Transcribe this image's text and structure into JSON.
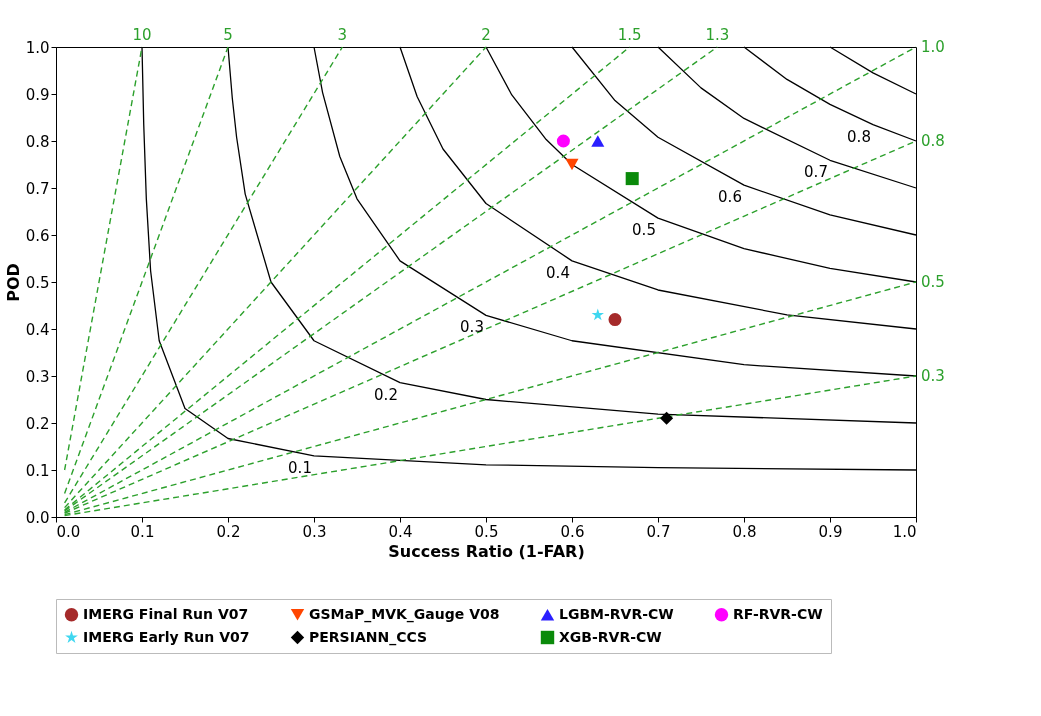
{
  "chart_data": {
    "type": "scatter",
    "xlabel": "Success Ratio (1-FAR)",
    "ylabel": "POD",
    "xlim": [
      0,
      1
    ],
    "ylim": [
      0,
      1
    ],
    "xticks": [
      {
        "value": 0,
        "label": "0.0"
      },
      0.1,
      0.2,
      0.3,
      0.4,
      0.5,
      0.6,
      0.7,
      0.8,
      0.9,
      {
        "value": 1,
        "label": "1.0"
      }
    ],
    "yticks": [
      {
        "value": 0,
        "label": "0.0"
      },
      0.1,
      0.2,
      0.3,
      0.4,
      0.5,
      0.6,
      0.7,
      0.8,
      0.9,
      {
        "value": 1,
        "label": "1.0"
      }
    ],
    "grid": false,
    "legend": "bottom",
    "series": [
      {
        "type": "line",
        "color": "#000000",
        "line_style": "solid",
        "marker": "none",
        "x": [
          0.1,
          0.102,
          0.105,
          0.11,
          0.12,
          0.15,
          0.2,
          0.3,
          0.5,
          0.7,
          1.0
        ],
        "values": [
          1.0,
          0.836,
          0.678,
          0.524,
          0.375,
          0.231,
          0.167,
          0.13,
          0.111,
          0.105,
          0.1
        ]
      },
      {
        "type": "line",
        "color": "#000000",
        "line_style": "solid",
        "marker": "none",
        "x": [
          0.2,
          0.205,
          0.21,
          0.22,
          0.25,
          0.3,
          0.4,
          0.5,
          0.7,
          1.0
        ],
        "values": [
          1.0,
          0.891,
          0.808,
          0.687,
          0.5,
          0.375,
          0.286,
          0.25,
          0.219,
          0.2
        ]
      },
      {
        "type": "line",
        "color": "#000000",
        "line_style": "solid",
        "marker": "none",
        "x": [
          0.3,
          0.31,
          0.33,
          0.35,
          0.4,
          0.5,
          0.6,
          0.8,
          1.0
        ],
        "values": [
          1.0,
          0.903,
          0.767,
          0.677,
          0.545,
          0.429,
          0.375,
          0.324,
          0.3
        ]
      },
      {
        "type": "line",
        "color": "#000000",
        "line_style": "solid",
        "marker": "none",
        "x": [
          0.4,
          0.42,
          0.45,
          0.5,
          0.6,
          0.7,
          0.85,
          1.0
        ],
        "values": [
          1.0,
          0.894,
          0.783,
          0.667,
          0.545,
          0.483,
          0.43,
          0.4
        ]
      },
      {
        "type": "line",
        "color": "#000000",
        "line_style": "solid",
        "marker": "none",
        "x": [
          0.5,
          0.53,
          0.57,
          0.6,
          0.7,
          0.8,
          0.9,
          1.0
        ],
        "values": [
          1.0,
          0.898,
          0.803,
          0.75,
          0.636,
          0.571,
          0.529,
          0.5
        ]
      },
      {
        "type": "line",
        "color": "#000000",
        "line_style": "solid",
        "marker": "none",
        "x": [
          0.6,
          0.65,
          0.7,
          0.8,
          0.9,
          1.0
        ],
        "values": [
          1.0,
          0.886,
          0.808,
          0.706,
          0.643,
          0.6
        ]
      },
      {
        "type": "line",
        "color": "#000000",
        "line_style": "solid",
        "marker": "none",
        "x": [
          0.7,
          0.75,
          0.8,
          0.9,
          1.0
        ],
        "values": [
          1.0,
          0.913,
          0.848,
          0.759,
          0.7
        ]
      },
      {
        "type": "line",
        "color": "#000000",
        "line_style": "solid",
        "marker": "none",
        "x": [
          0.8,
          0.85,
          0.9,
          0.95,
          1.0
        ],
        "values": [
          1.0,
          0.931,
          0.878,
          0.835,
          0.8
        ]
      },
      {
        "type": "line",
        "color": "#000000",
        "line_style": "solid",
        "marker": "none",
        "x": [
          0.9,
          0.95,
          1.0
        ],
        "values": [
          1.0,
          0.945,
          0.9
        ]
      },
      {
        "type": "line",
        "color": "#2ca02c",
        "line_style": "dashed",
        "marker": "none",
        "x": [
          0.01,
          0.1
        ],
        "values": [
          0.1,
          1.0
        ]
      },
      {
        "type": "line",
        "color": "#2ca02c",
        "line_style": "dashed",
        "marker": "none",
        "x": [
          0.01,
          0.2
        ],
        "values": [
          0.05,
          1.0
        ]
      },
      {
        "type": "line",
        "color": "#2ca02c",
        "line_style": "dashed",
        "marker": "none",
        "x": [
          0.01,
          0.333
        ],
        "values": [
          0.03,
          1.0
        ]
      },
      {
        "type": "line",
        "color": "#2ca02c",
        "line_style": "dashed",
        "marker": "none",
        "x": [
          0.01,
          0.5
        ],
        "values": [
          0.02,
          1.0
        ]
      },
      {
        "type": "line",
        "color": "#2ca02c",
        "line_style": "dashed",
        "marker": "none",
        "x": [
          0.01,
          0.667
        ],
        "values": [
          0.015,
          1.0
        ]
      },
      {
        "type": "line",
        "color": "#2ca02c",
        "line_style": "dashed",
        "marker": "none",
        "x": [
          0.01,
          0.769
        ],
        "values": [
          0.013,
          1.0
        ]
      },
      {
        "type": "line",
        "color": "#2ca02c",
        "line_style": "dashed",
        "marker": "none",
        "x": [
          0.01,
          1.0
        ],
        "values": [
          0.01,
          1.0
        ]
      },
      {
        "type": "line",
        "color": "#2ca02c",
        "line_style": "dashed",
        "marker": "none",
        "x": [
          0.01,
          1.0
        ],
        "values": [
          0.008,
          0.8
        ]
      },
      {
        "type": "line",
        "color": "#2ca02c",
        "line_style": "dashed",
        "marker": "none",
        "x": [
          0.01,
          1.0
        ],
        "values": [
          0.005,
          0.5
        ]
      },
      {
        "type": "line",
        "color": "#2ca02c",
        "line_style": "dashed",
        "marker": "none",
        "x": [
          0.01,
          1.0
        ],
        "values": [
          0.003,
          0.3
        ]
      },
      {
        "name": "IMERG Final Run V07",
        "color": "#a52a2a",
        "marker": "circle",
        "x": [
          0.65
        ],
        "values": [
          0.42
        ]
      },
      {
        "name": "GSMaP_MVK_Gauge V08",
        "color": "#ff4500",
        "marker": "triangle-down",
        "x": [
          0.6
        ],
        "values": [
          0.75
        ]
      },
      {
        "name": "LGBM-RVR-CW",
        "color": "#2a1fff",
        "marker": "triangle",
        "x": [
          0.63
        ],
        "values": [
          0.8
        ]
      },
      {
        "name": "RF-RVR-CW",
        "color": "#ff00ff",
        "marker": "circle",
        "x": [
          0.59
        ],
        "values": [
          0.8
        ]
      },
      {
        "name": "IMERG Early Run V07",
        "color": "#3fd7f0",
        "marker": "star",
        "x": [
          0.63
        ],
        "values": [
          0.43
        ]
      },
      {
        "name": "PERSIANN_CCS",
        "color": "#000000",
        "marker": "diamond",
        "x": [
          0.71
        ],
        "values": [
          0.21
        ]
      },
      {
        "name": "XGB-RVR-CW",
        "color": "#0a8a0a",
        "marker": "square",
        "x": [
          0.67
        ],
        "values": [
          0.72
        ]
      }
    ],
    "annotations": [
      {
        "text": "0.1",
        "x": 0.3,
        "y": 0.13
      },
      {
        "text": "0.2",
        "x": 0.4,
        "y": 0.286
      },
      {
        "text": "0.3",
        "x": 0.5,
        "y": 0.429
      },
      {
        "text": "0.4",
        "x": 0.6,
        "y": 0.545
      },
      {
        "text": "0.5",
        "x": 0.7,
        "y": 0.636
      },
      {
        "text": "0.6",
        "x": 0.8,
        "y": 0.706
      },
      {
        "text": "0.7",
        "x": 0.9,
        "y": 0.759
      },
      {
        "text": "0.8",
        "x": 0.95,
        "y": 0.835
      },
      {
        "text": "10",
        "x": 0.1,
        "y": 1.0
      },
      {
        "text": "5",
        "x": 0.2,
        "y": 1.0
      },
      {
        "text": "3",
        "x": 0.333,
        "y": 1.0
      },
      {
        "text": "2",
        "x": 0.5,
        "y": 1.0
      },
      {
        "text": "1.5",
        "x": 0.667,
        "y": 1.0
      },
      {
        "text": "1.3",
        "x": 0.769,
        "y": 1.0
      },
      {
        "text": "1.0",
        "x": 1.0,
        "y": 1.0
      },
      {
        "text": "0.8",
        "x": 1.0,
        "y": 0.8
      },
      {
        "text": "0.5",
        "x": 1.0,
        "y": 0.5
      },
      {
        "text": "0.3",
        "x": 1.0,
        "y": 0.3
      }
    ]
  }
}
